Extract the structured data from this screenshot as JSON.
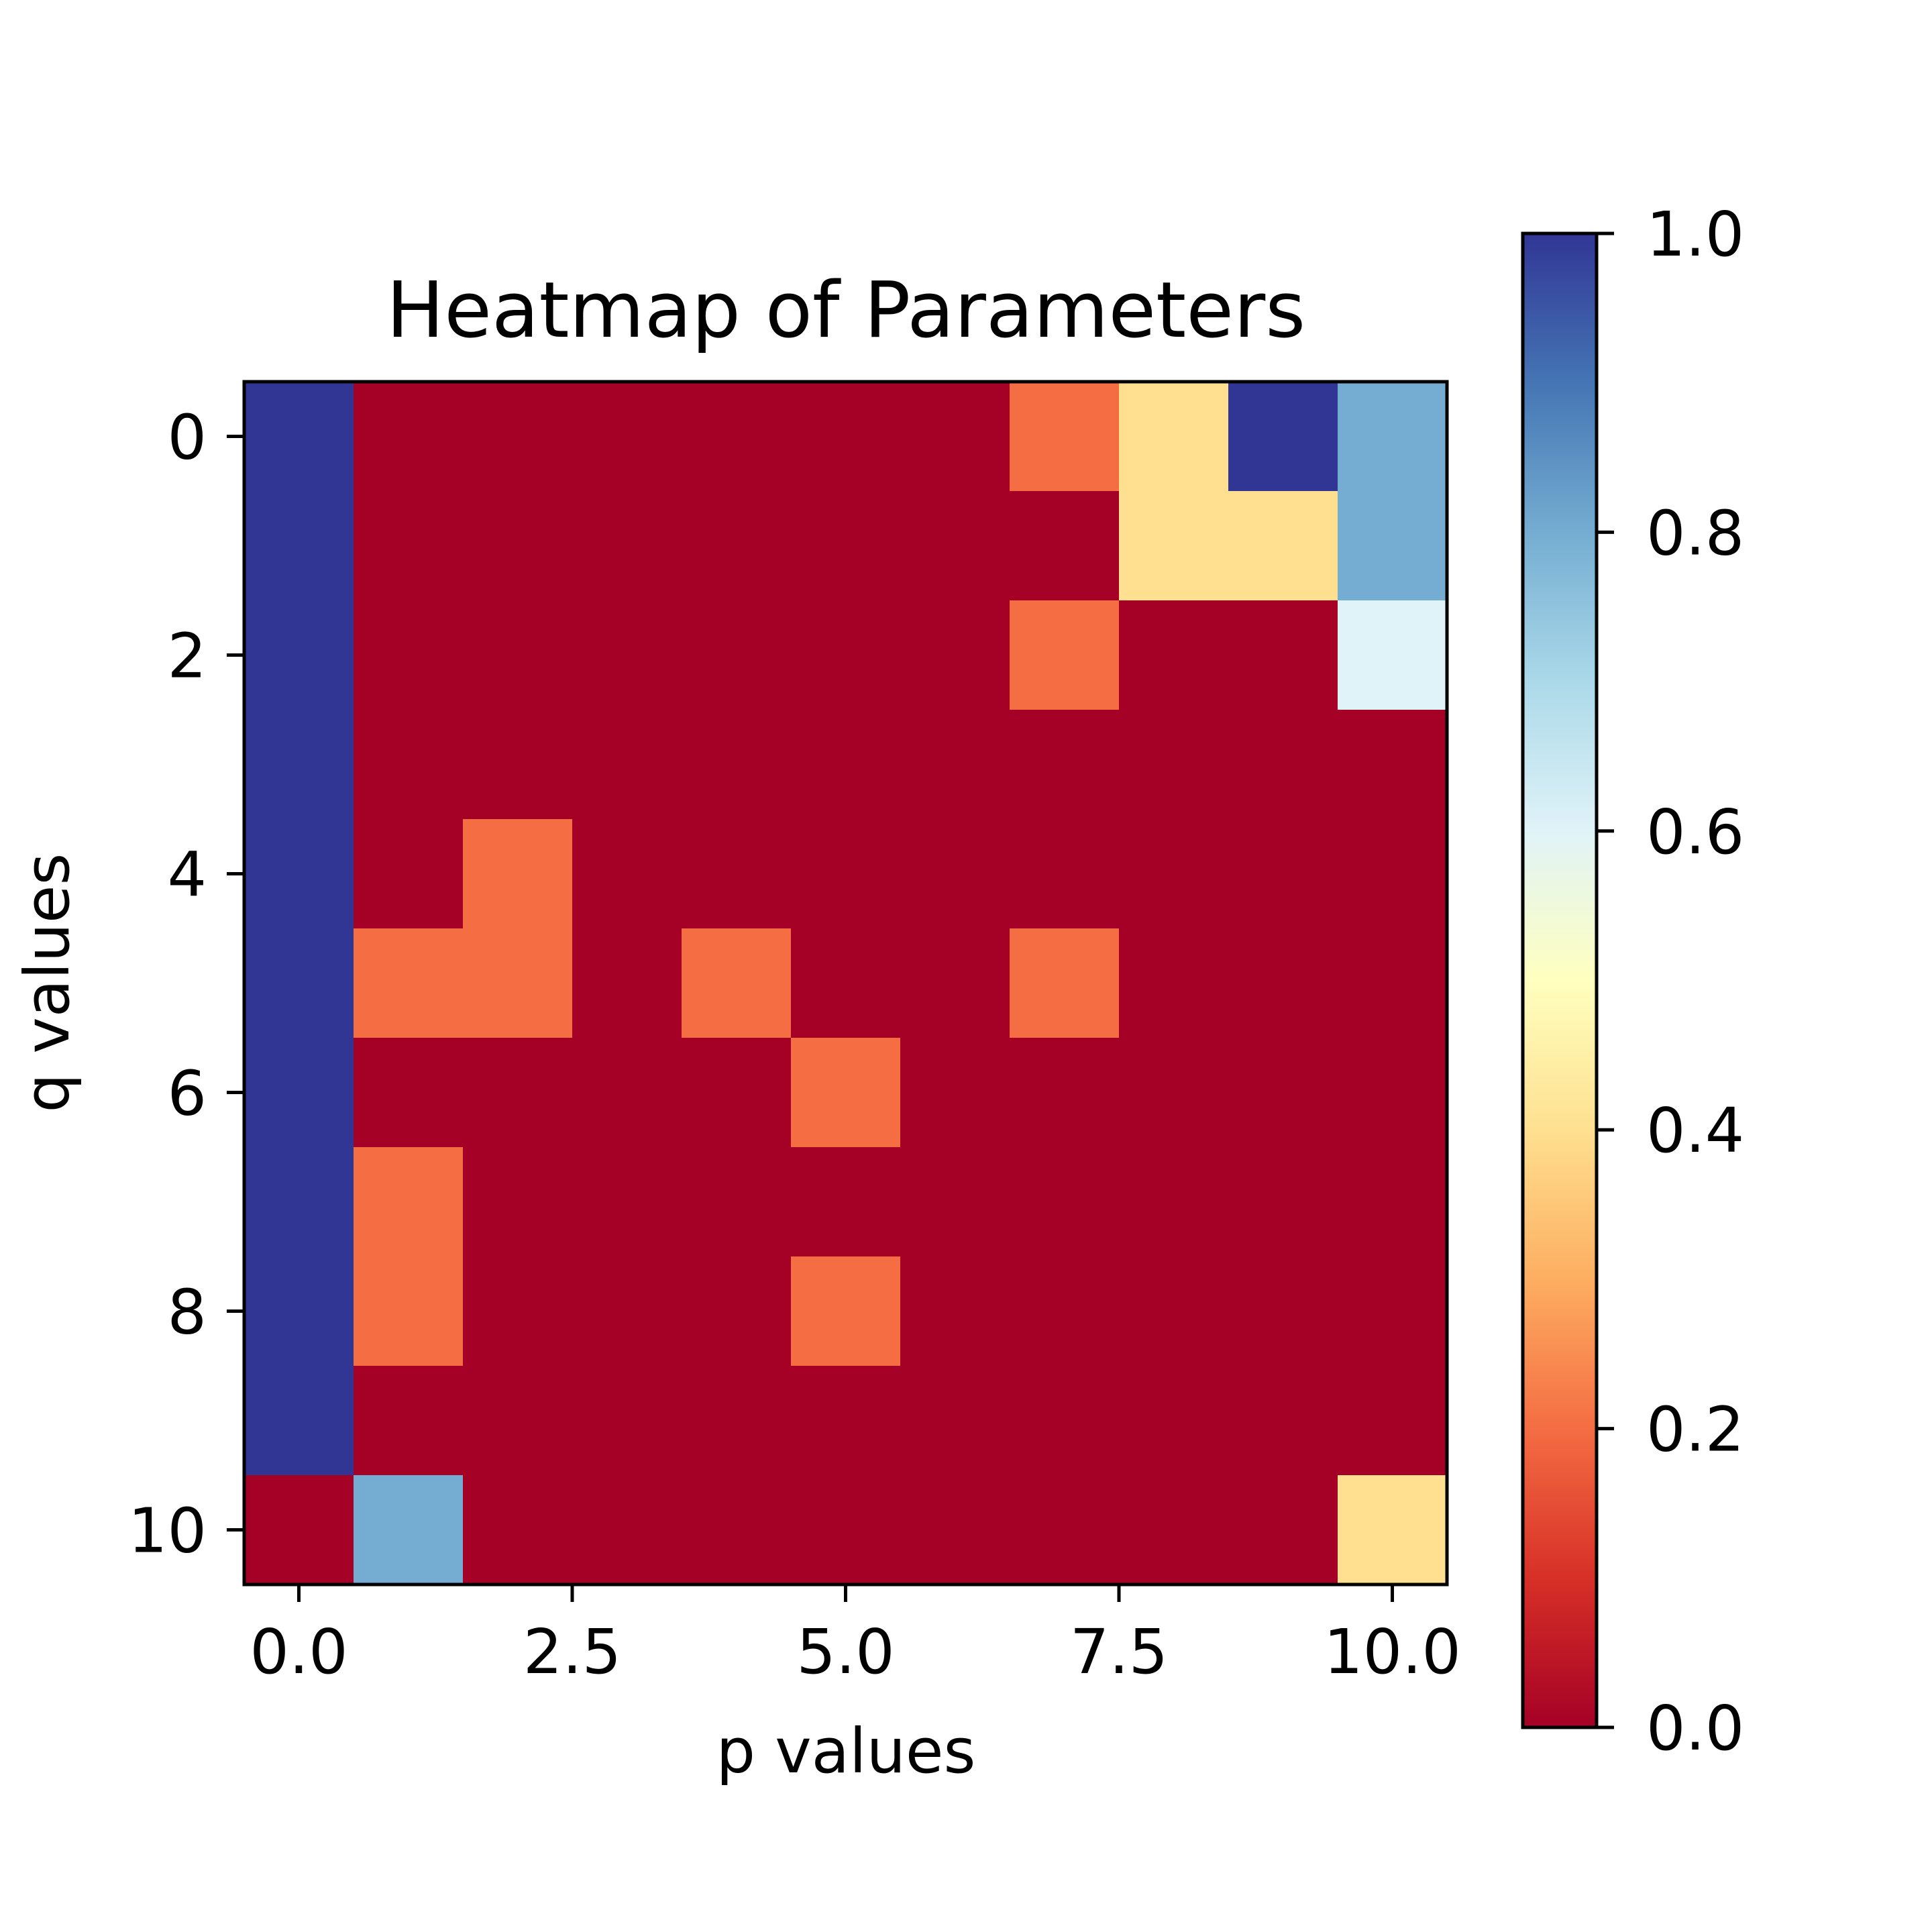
{
  "chart_data": {
    "type": "heatmap",
    "title": "Heatmap of Parameters",
    "xlabel": "p values",
    "ylabel": "q values",
    "x_values": [
      0,
      1,
      2,
      3,
      4,
      5,
      6,
      7,
      8,
      9,
      10
    ],
    "y_values": [
      0,
      1,
      2,
      3,
      4,
      5,
      6,
      7,
      8,
      9,
      10
    ],
    "xlim": [
      -0.5,
      10.5
    ],
    "ylim": [
      10.5,
      -0.5
    ],
    "x_ticks": [
      0,
      2.5,
      5,
      7.5,
      10
    ],
    "x_tick_labels": [
      "0.0",
      "2.5",
      "5.0",
      "7.5",
      "10.0"
    ],
    "y_ticks": [
      0,
      2,
      4,
      6,
      8,
      10
    ],
    "y_tick_labels": [
      "0",
      "2",
      "4",
      "6",
      "8",
      "10"
    ],
    "colormap": "RdYlBu",
    "colorbar": {
      "range": [
        0,
        1
      ],
      "ticks": [
        0,
        0.2,
        0.4,
        0.6,
        0.8,
        1.0
      ],
      "tick_labels": [
        "0.0",
        "0.2",
        "0.4",
        "0.6",
        "0.8",
        "1.0"
      ],
      "placement": "right"
    },
    "colormap_stops": [
      {
        "offset": 0.0,
        "color": "#a50026"
      },
      {
        "offset": 0.1,
        "color": "#d73027"
      },
      {
        "offset": 0.2,
        "color": "#f46d43"
      },
      {
        "offset": 0.3,
        "color": "#fdae61"
      },
      {
        "offset": 0.4,
        "color": "#fee090"
      },
      {
        "offset": 0.5,
        "color": "#ffffbf"
      },
      {
        "offset": 0.6,
        "color": "#e0f3f8"
      },
      {
        "offset": 0.7,
        "color": "#abd9e9"
      },
      {
        "offset": 0.8,
        "color": "#74add1"
      },
      {
        "offset": 0.9,
        "color": "#4575b4"
      },
      {
        "offset": 1.0,
        "color": "#313695"
      }
    ],
    "z": [
      [
        1,
        0,
        0,
        0,
        0,
        0,
        0,
        0.2,
        0.4,
        1,
        0.8
      ],
      [
        1,
        0,
        0,
        0,
        0,
        0,
        0,
        0,
        0.4,
        0.4,
        0.8
      ],
      [
        1,
        0,
        0,
        0,
        0,
        0,
        0,
        0.2,
        0,
        0,
        0.6
      ],
      [
        1,
        0,
        0,
        0,
        0,
        0,
        0,
        0,
        0,
        0,
        0
      ],
      [
        1,
        0,
        0.2,
        0,
        0,
        0,
        0,
        0,
        0,
        0,
        0
      ],
      [
        1,
        0.2,
        0.2,
        0,
        0.2,
        0,
        0,
        0.2,
        0,
        0,
        0
      ],
      [
        1,
        0,
        0,
        0,
        0,
        0.2,
        0,
        0,
        0,
        0,
        0
      ],
      [
        1,
        0.2,
        0,
        0,
        0,
        0,
        0,
        0,
        0,
        0,
        0
      ],
      [
        1,
        0.2,
        0,
        0,
        0,
        0.2,
        0,
        0,
        0,
        0,
        0
      ],
      [
        1,
        0,
        0,
        0,
        0,
        0,
        0,
        0,
        0,
        0,
        0
      ],
      [
        0,
        0.8,
        0,
        0,
        0,
        0,
        0,
        0,
        0,
        0,
        0.4
      ]
    ]
  }
}
